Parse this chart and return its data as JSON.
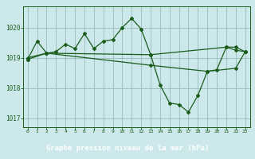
{
  "title": "Graphe pression niveau de la mer (hPa)",
  "plot_bg": "#cce8ea",
  "label_bg": "#3d7a5a",
  "grid_color": "#99bbbb",
  "line_color": "#1a5c1a",
  "series": [
    {
      "x": [
        0,
        1,
        2,
        3,
        4,
        5,
        6,
        7,
        8,
        9,
        10,
        11,
        12,
        13,
        14,
        15,
        16,
        17,
        18,
        19,
        20,
        21,
        22,
        23
      ],
      "y": [
        1018.95,
        1019.55,
        1019.15,
        1019.2,
        1019.45,
        1019.3,
        1019.8,
        1019.3,
        1019.55,
        1019.6,
        1020.0,
        1020.3,
        1019.95,
        1019.1,
        1018.1,
        1017.5,
        1017.45,
        1017.2,
        1017.75,
        1018.55,
        1018.6,
        1019.35,
        1019.25,
        1019.2
      ]
    },
    {
      "x": [
        0,
        2,
        13,
        21,
        22,
        23
      ],
      "y": [
        1019.0,
        1019.15,
        1019.1,
        1019.35,
        1019.35,
        1019.2
      ]
    },
    {
      "x": [
        0,
        2,
        13,
        19,
        22,
        23
      ],
      "y": [
        1018.95,
        1019.15,
        1018.75,
        1018.55,
        1018.65,
        1019.2
      ]
    }
  ],
  "xlim": [
    -0.5,
    23.5
  ],
  "ylim": [
    1016.7,
    1020.7
  ],
  "yticks": [
    1017,
    1018,
    1019,
    1020
  ],
  "xticks": [
    0,
    1,
    2,
    3,
    4,
    5,
    6,
    7,
    8,
    9,
    10,
    11,
    12,
    13,
    14,
    15,
    16,
    17,
    18,
    19,
    20,
    21,
    22,
    23
  ],
  "marker": "D",
  "markersize": 2.0,
  "linewidth": 0.9
}
